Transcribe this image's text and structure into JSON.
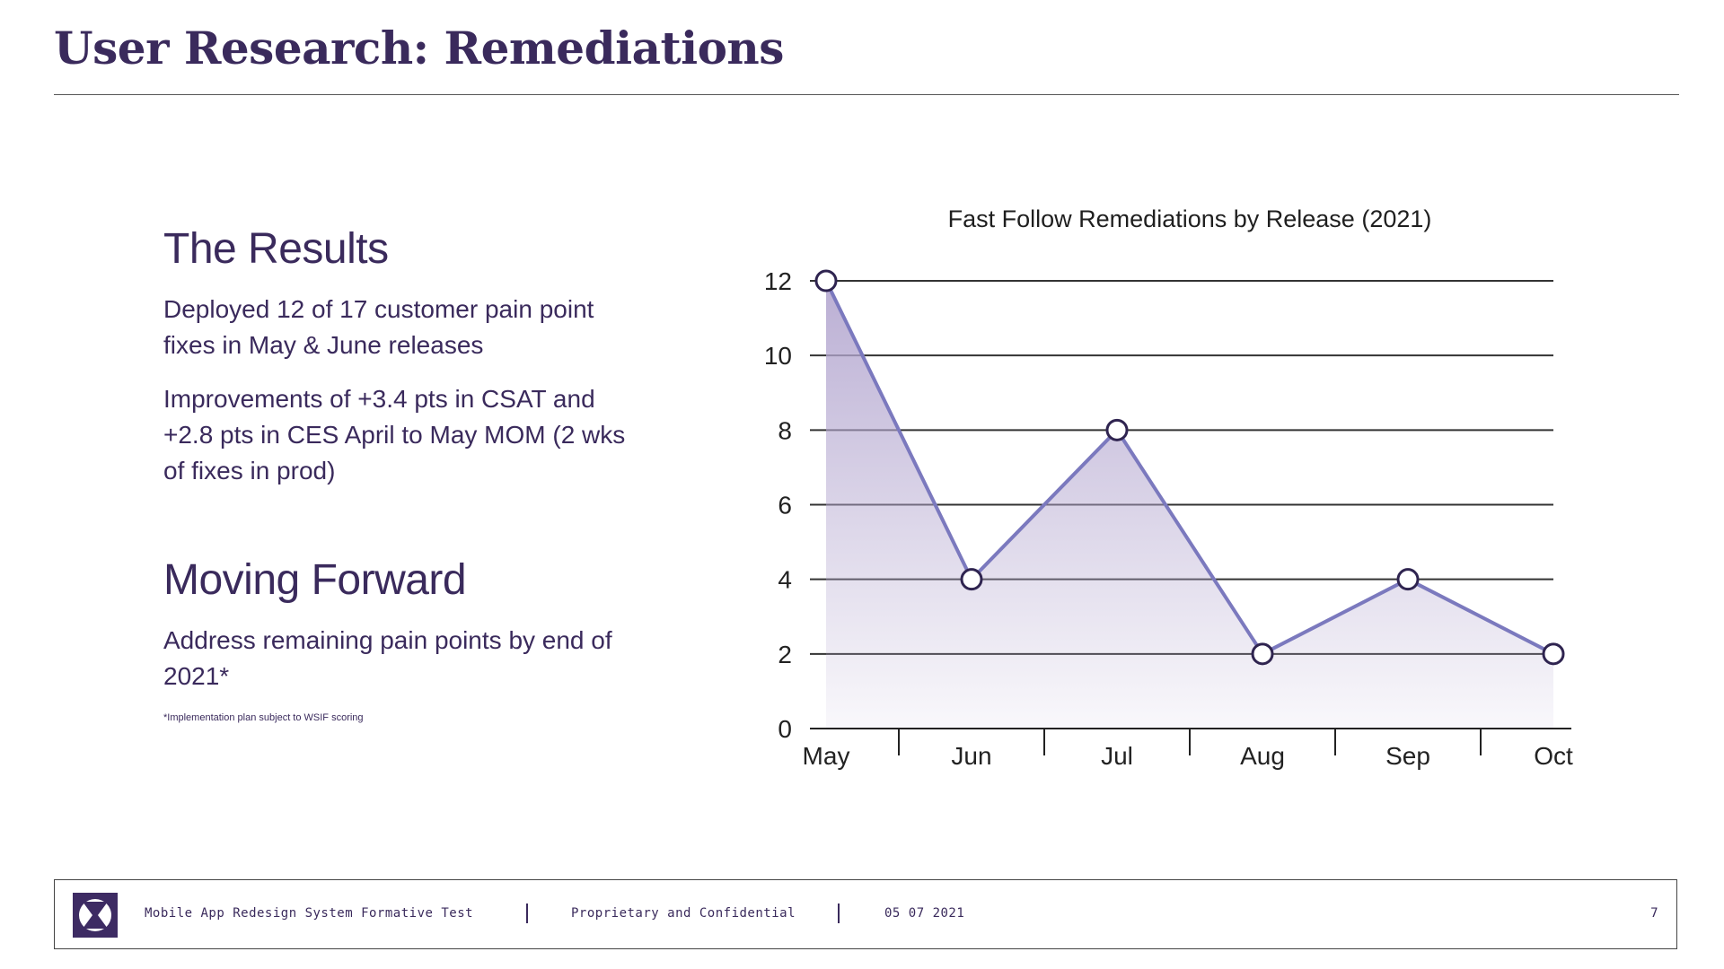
{
  "header": {
    "title": "User Research: Remediations"
  },
  "results": {
    "heading": "The Results",
    "paragraphs": [
      "Deployed 12 of 17 customer pain point fixes in May & June releases",
      "Improvements of +3.4 pts in CSAT and +2.8 pts in CES April to May MOM (2 wks of fixes in prod)"
    ]
  },
  "moving_forward": {
    "heading": "Moving Forward",
    "paragraph": "Address remaining pain points by end of 2021*",
    "footnote": "*Implementation plan subject to WSIF scoring"
  },
  "chart_data": {
    "type": "area",
    "title": "Fast Follow Remediations by Release (2021)",
    "categories": [
      "May",
      "Jun",
      "Jul",
      "Aug",
      "Sep",
      "Oct"
    ],
    "values": [
      12,
      4,
      8,
      2,
      4,
      2
    ],
    "ylim": [
      0,
      12
    ],
    "yticks": [
      0,
      2,
      4,
      6,
      8,
      10,
      12
    ],
    "xlabel": "",
    "ylabel": "",
    "grid": true,
    "colors": {
      "line": "#7b79be",
      "fill": "#b3a6cf",
      "grid": "#333333",
      "marker_stroke": "#2f2450"
    }
  },
  "footer": {
    "project": "Mobile App Redesign System Formative Test",
    "confidentiality": "Proprietary and Confidential",
    "date": "05 07 2021",
    "page_number": "7",
    "logo_icon": "hourglass-logo-icon"
  },
  "colors": {
    "accent": "#3a2a5c",
    "footer_logo_bg": "#3d2b63"
  }
}
